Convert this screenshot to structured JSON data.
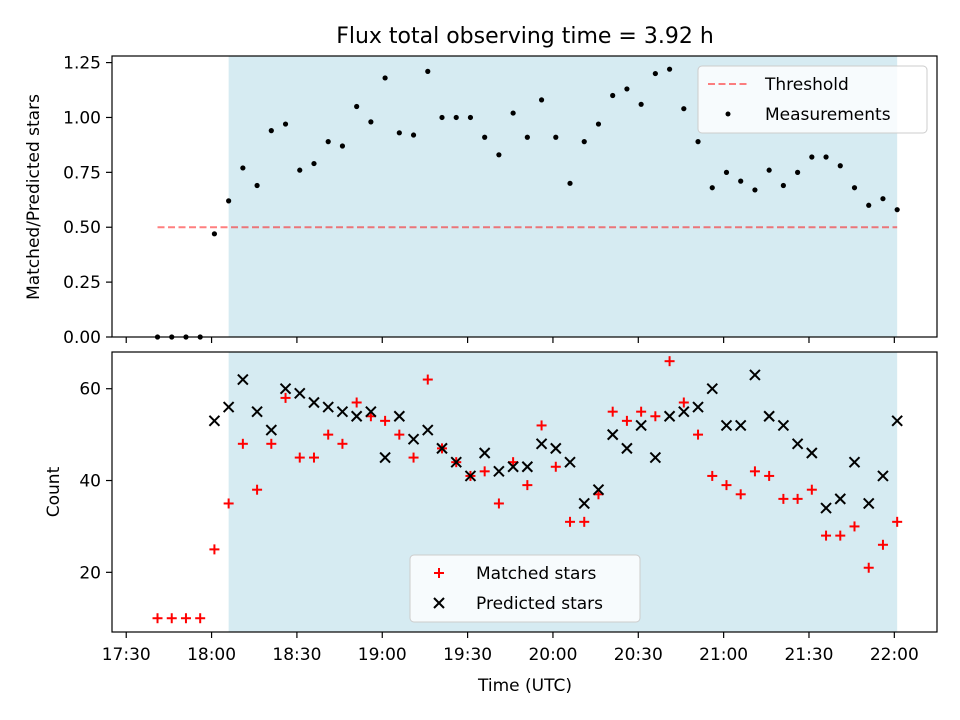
{
  "title": "Flux total observing time = 3.92 h",
  "colors": {
    "shade": "#add8e6",
    "threshold": "#ff0000",
    "measurement": "#000000",
    "matched": "#ff0000",
    "predicted": "#000000"
  },
  "chart_data": [
    {
      "type": "scatter",
      "panel": "top",
      "title": "Flux total observing time = 3.92 h",
      "ylabel": "Matched/Predicted stars",
      "xlabel": "",
      "xlim": [
        "17:25",
        "22:15"
      ],
      "ylim": [
        0,
        1.28
      ],
      "yticks": [
        0.0,
        0.25,
        0.5,
        0.75,
        1.0,
        1.25
      ],
      "ytick_labels": [
        "0.00",
        "0.25",
        "0.50",
        "0.75",
        "1.00",
        "1.25"
      ],
      "shaded_region": [
        "18:06",
        "22:01"
      ],
      "legend_position": "top-right",
      "threshold": {
        "name": "Threshold",
        "value": 0.5,
        "x_range": [
          "17:41",
          "22:01"
        ],
        "style": "dashed"
      },
      "series": [
        {
          "name": "Measurements",
          "x": [
            "17:41",
            "17:46",
            "17:51",
            "17:56",
            "18:01",
            "18:06",
            "18:11",
            "18:16",
            "18:21",
            "18:26",
            "18:31",
            "18:36",
            "18:41",
            "18:46",
            "18:51",
            "18:56",
            "19:01",
            "19:06",
            "19:11",
            "19:16",
            "19:21",
            "19:26",
            "19:31",
            "19:36",
            "19:41",
            "19:46",
            "19:51",
            "19:56",
            "20:01",
            "20:06",
            "20:11",
            "20:16",
            "20:21",
            "20:26",
            "20:31",
            "20:36",
            "20:41",
            "20:46",
            "20:51",
            "20:56",
            "21:01",
            "21:06",
            "21:11",
            "21:16",
            "21:21",
            "21:26",
            "21:31",
            "21:36",
            "21:41",
            "21:46",
            "21:51",
            "21:56",
            "22:01"
          ],
          "values": [
            0.0,
            0.0,
            0.0,
            0.0,
            0.47,
            0.62,
            0.77,
            0.69,
            0.94,
            0.97,
            0.76,
            0.79,
            0.89,
            0.87,
            1.05,
            0.98,
            1.18,
            0.93,
            0.92,
            1.21,
            1.0,
            1.0,
            1.0,
            0.91,
            0.83,
            1.02,
            0.91,
            1.08,
            0.91,
            0.7,
            0.89,
            0.97,
            1.1,
            1.13,
            1.06,
            1.2,
            1.22,
            1.04,
            0.89,
            0.68,
            0.75,
            0.71,
            0.67,
            0.76,
            0.69,
            0.75,
            0.82,
            0.82,
            0.78,
            0.68,
            0.6,
            0.63,
            0.58
          ]
        }
      ]
    },
    {
      "type": "scatter",
      "panel": "bottom",
      "xlabel": "Time (UTC)",
      "ylabel": "Count",
      "xlim": [
        "17:25",
        "22:15"
      ],
      "ylim": [
        7,
        68
      ],
      "yticks": [
        20,
        40,
        60
      ],
      "xtick_labels": [
        "17:30",
        "18:00",
        "18:30",
        "19:00",
        "19:30",
        "20:00",
        "20:30",
        "21:00",
        "21:30",
        "22:00"
      ],
      "shaded_region": [
        "18:06",
        "22:01"
      ],
      "legend_position": "bottom-center",
      "series": [
        {
          "name": "Matched stars",
          "marker": "+",
          "x": [
            "17:41",
            "17:46",
            "17:51",
            "17:56",
            "18:01",
            "18:06",
            "18:11",
            "18:16",
            "18:21",
            "18:26",
            "18:31",
            "18:36",
            "18:41",
            "18:46",
            "18:51",
            "18:56",
            "19:01",
            "19:06",
            "19:11",
            "19:16",
            "19:21",
            "19:26",
            "19:31",
            "19:36",
            "19:41",
            "19:46",
            "19:51",
            "19:56",
            "20:01",
            "20:06",
            "20:11",
            "20:16",
            "20:21",
            "20:26",
            "20:31",
            "20:36",
            "20:41",
            "20:46",
            "20:51",
            "20:56",
            "21:01",
            "21:06",
            "21:11",
            "21:16",
            "21:21",
            "21:26",
            "21:31",
            "21:36",
            "21:41",
            "21:46",
            "21:51",
            "21:56",
            "22:01"
          ],
          "values": [
            10,
            10,
            10,
            10,
            25,
            35,
            48,
            38,
            48,
            58,
            45,
            45,
            50,
            48,
            57,
            54,
            53,
            50,
            45,
            62,
            47,
            44,
            41,
            42,
            35,
            44,
            39,
            52,
            43,
            31,
            31,
            37,
            55,
            53,
            55,
            54,
            66,
            57,
            50,
            41,
            39,
            37,
            42,
            41,
            36,
            36,
            38,
            28,
            28,
            30,
            21,
            26,
            31
          ]
        },
        {
          "name": "Predicted stars",
          "marker": "x",
          "x": [
            "18:01",
            "18:06",
            "18:11",
            "18:16",
            "18:21",
            "18:26",
            "18:31",
            "18:36",
            "18:41",
            "18:46",
            "18:51",
            "18:56",
            "19:01",
            "19:06",
            "19:11",
            "19:16",
            "19:21",
            "19:26",
            "19:31",
            "19:36",
            "19:41",
            "19:46",
            "19:51",
            "19:56",
            "20:01",
            "20:06",
            "20:11",
            "20:16",
            "20:21",
            "20:26",
            "20:31",
            "20:36",
            "20:41",
            "20:46",
            "20:51",
            "20:56",
            "21:01",
            "21:06",
            "21:11",
            "21:16",
            "21:21",
            "21:26",
            "21:31",
            "21:36",
            "21:41",
            "21:46",
            "21:51",
            "21:56",
            "22:01"
          ],
          "values": [
            53,
            56,
            62,
            55,
            51,
            60,
            59,
            57,
            56,
            55,
            54,
            55,
            45,
            54,
            49,
            51,
            47,
            44,
            41,
            46,
            42,
            43,
            43,
            48,
            47,
            44,
            35,
            38,
            50,
            47,
            52,
            45,
            54,
            55,
            56,
            60,
            52,
            52,
            63,
            54,
            52,
            48,
            46,
            34,
            36,
            44,
            35,
            41,
            53
          ]
        }
      ]
    }
  ]
}
